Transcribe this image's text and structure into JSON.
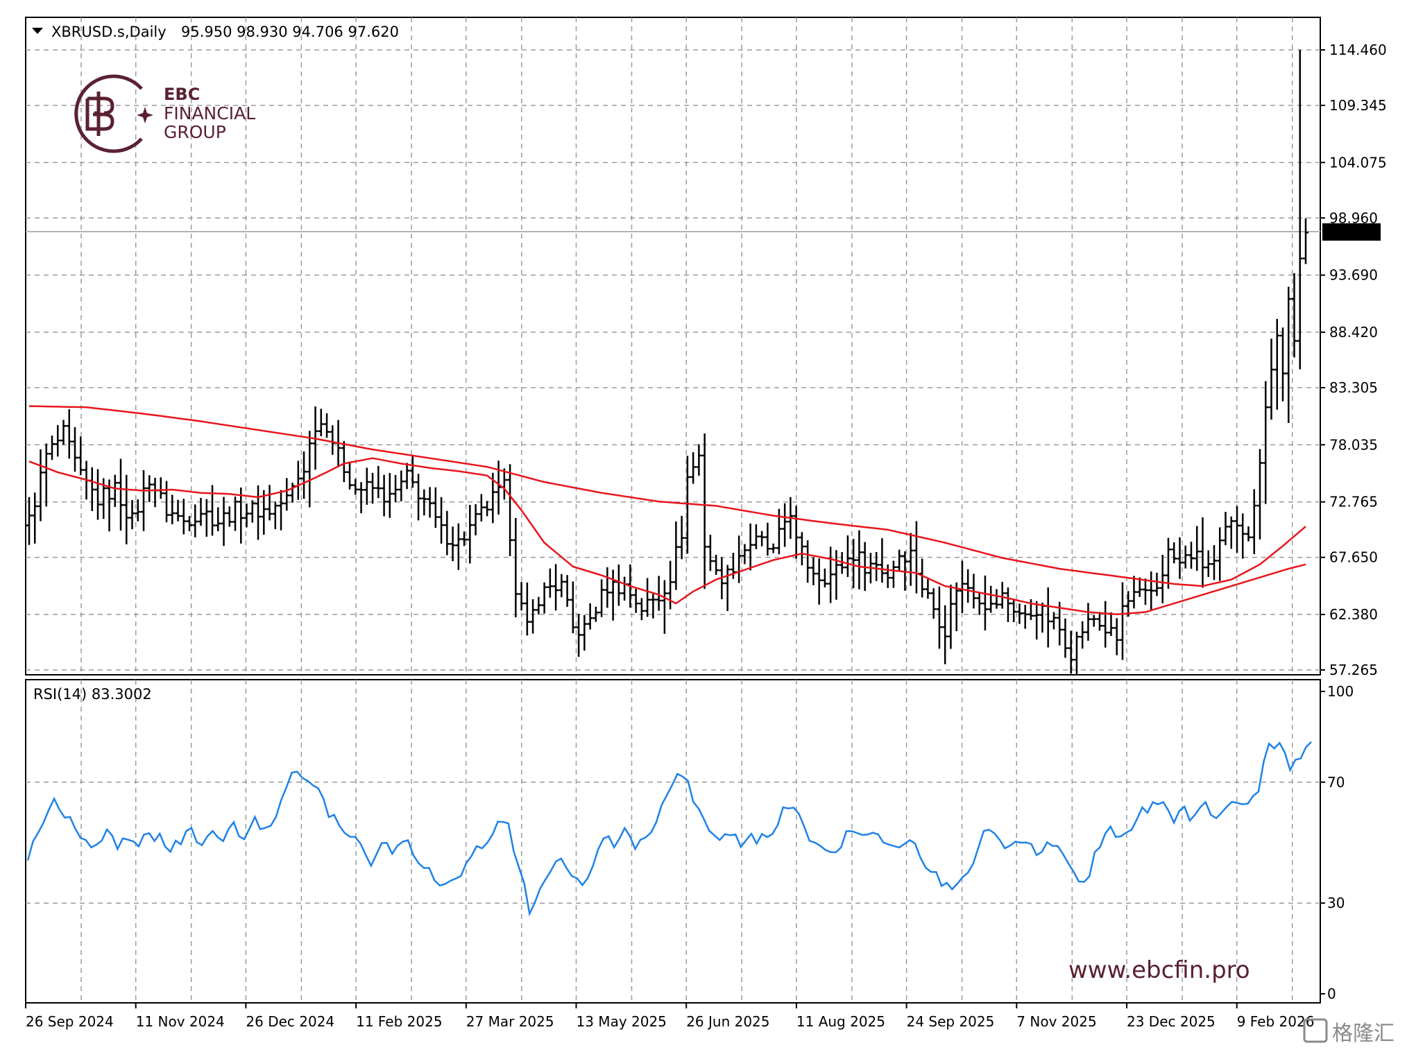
{
  "header": {
    "symbol": "XBRUSD.s,Daily",
    "ohlc": "95.950 98.930 94.706 97.620"
  },
  "logo": {
    "line1": "EBC",
    "line2": "FINANCIAL",
    "line3": "GROUP",
    "brand_color": "#5a2130"
  },
  "website": "www.ebcfin.pro",
  "watermark": "格隆汇",
  "colors": {
    "bars": "#000000",
    "ma_long": "#e8141c",
    "ma_short": "#e8141c",
    "rsi": "#1e82e6",
    "grid": "#9a9a9a",
    "price_tag_bg": "#000000",
    "price_tag_text": "#ffffff"
  },
  "chart_data": [
    {
      "type": "ohlc",
      "title": "XBRUSD.s,Daily",
      "ylim": [
        57.265,
        114.46
      ],
      "y_ticks": [
        "114.460",
        "109.345",
        "104.075",
        "98.960",
        "93.690",
        "88.420",
        "83.305",
        "78.035",
        "72.765",
        "67.650",
        "62.380",
        "57.265"
      ],
      "x_ticks": [
        "26 Sep 2024",
        "11 Nov 2024",
        "26 Dec 2024",
        "11 Feb 2025",
        "27 Mar 2025",
        "13 May 2025",
        "26 Jun 2025",
        "11 Aug 2025",
        "24 Sep 2025",
        "7 Nov 2025",
        "23 Dec 2025",
        "9 Feb 2026"
      ],
      "current_price": "97.620",
      "close_anchors": [
        [
          0,
          71
        ],
        [
          3,
          77
        ],
        [
          6,
          79
        ],
        [
          9,
          75
        ],
        [
          12,
          73
        ],
        [
          15,
          74
        ],
        [
          18,
          71
        ],
        [
          21,
          75
        ],
        [
          24,
          72
        ],
        [
          27,
          71
        ],
        [
          30,
          72
        ],
        [
          33,
          71
        ],
        [
          36,
          72
        ],
        [
          39,
          72
        ],
        [
          42,
          72
        ],
        [
          45,
          73
        ],
        [
          48,
          76
        ],
        [
          50,
          80
        ],
        [
          52,
          80
        ],
        [
          54,
          77
        ],
        [
          57,
          74
        ],
        [
          60,
          74
        ],
        [
          63,
          73
        ],
        [
          66,
          75
        ],
        [
          69,
          73
        ],
        [
          72,
          70
        ],
        [
          75,
          69
        ],
        [
          78,
          71
        ],
        [
          81,
          73
        ],
        [
          83,
          74
        ],
        [
          84,
          70
        ],
        [
          85,
          65
        ],
        [
          87,
          61
        ],
        [
          89,
          64
        ],
        [
          91,
          65
        ],
        [
          93,
          65
        ],
        [
          95,
          61
        ],
        [
          97,
          61
        ],
        [
          99,
          63
        ],
        [
          101,
          65
        ],
        [
          104,
          65
        ],
        [
          107,
          63
        ],
        [
          110,
          64
        ],
        [
          112,
          66
        ],
        [
          114,
          70
        ],
        [
          115,
          75
        ],
        [
          117,
          77
        ],
        [
          118,
          69
        ],
        [
          120,
          66
        ],
        [
          122,
          66
        ],
        [
          124,
          68
        ],
        [
          126,
          69
        ],
        [
          128,
          69
        ],
        [
          130,
          68
        ],
        [
          132,
          71
        ],
        [
          133,
          72
        ],
        [
          134,
          69
        ],
        [
          136,
          67
        ],
        [
          138,
          66
        ],
        [
          140,
          66
        ],
        [
          142,
          67
        ],
        [
          144,
          68
        ],
        [
          146,
          67
        ],
        [
          148,
          67
        ],
        [
          150,
          66
        ],
        [
          152,
          68
        ],
        [
          154,
          68
        ],
        [
          156,
          65
        ],
        [
          158,
          63
        ],
        [
          160,
          61
        ],
        [
          162,
          65
        ],
        [
          164,
          65
        ],
        [
          166,
          64
        ],
        [
          168,
          63
        ],
        [
          170,
          64
        ],
        [
          172,
          63
        ],
        [
          174,
          62
        ],
        [
          176,
          63
        ],
        [
          178,
          62
        ],
        [
          180,
          61
        ],
        [
          182,
          59
        ],
        [
          184,
          61
        ],
        [
          186,
          62
        ],
        [
          188,
          61
        ],
        [
          190,
          60
        ],
        [
          191,
          63
        ],
        [
          193,
          64
        ],
        [
          195,
          64
        ],
        [
          197,
          65
        ],
        [
          199,
          68
        ],
        [
          201,
          67
        ],
        [
          203,
          68
        ],
        [
          205,
          67
        ],
        [
          207,
          67
        ],
        [
          209,
          70
        ],
        [
          211,
          71
        ],
        [
          213,
          70
        ],
        [
          214,
          72
        ],
        [
          215,
          77
        ],
        [
          216,
          82
        ],
        [
          217,
          85
        ],
        [
          218,
          88
        ],
        [
          219,
          85
        ],
        [
          220,
          91
        ],
        [
          221,
          87
        ],
        [
          222,
          95
        ],
        [
          223,
          97.62
        ]
      ],
      "ma_long_anchors": [
        [
          0,
          81.6
        ],
        [
          10,
          81.5
        ],
        [
          20,
          80.9
        ],
        [
          30,
          80.2
        ],
        [
          40,
          79.4
        ],
        [
          50,
          78.6
        ],
        [
          60,
          77.6
        ],
        [
          70,
          76.8
        ],
        [
          80,
          76.0
        ],
        [
          90,
          74.6
        ],
        [
          100,
          73.6
        ],
        [
          110,
          72.8
        ],
        [
          120,
          72.4
        ],
        [
          130,
          71.5
        ],
        [
          140,
          70.8
        ],
        [
          150,
          70.2
        ],
        [
          160,
          69.0
        ],
        [
          170,
          67.6
        ],
        [
          180,
          66.6
        ],
        [
          190,
          65.9
        ],
        [
          200,
          65.2
        ],
        [
          205,
          65.0
        ],
        [
          210,
          65.6
        ],
        [
          215,
          67.0
        ],
        [
          219,
          68.7
        ],
        [
          223,
          70.5
        ]
      ],
      "ma_short_anchors": [
        [
          0,
          76.5
        ],
        [
          5,
          75.5
        ],
        [
          10,
          74.8
        ],
        [
          15,
          74.0
        ],
        [
          20,
          73.8
        ],
        [
          25,
          73.9
        ],
        [
          30,
          73.6
        ],
        [
          35,
          73.5
        ],
        [
          40,
          73.2
        ],
        [
          45,
          73.8
        ],
        [
          50,
          75.0
        ],
        [
          55,
          76.3
        ],
        [
          60,
          76.8
        ],
        [
          65,
          76.3
        ],
        [
          70,
          75.9
        ],
        [
          75,
          75.6
        ],
        [
          80,
          75.2
        ],
        [
          83,
          74.0
        ],
        [
          86,
          72.0
        ],
        [
          90,
          69.0
        ],
        [
          95,
          66.8
        ],
        [
          100,
          66.0
        ],
        [
          105,
          65.0
        ],
        [
          110,
          64.2
        ],
        [
          113,
          63.4
        ],
        [
          116,
          64.5
        ],
        [
          120,
          65.6
        ],
        [
          125,
          66.5
        ],
        [
          130,
          67.4
        ],
        [
          135,
          68.0
        ],
        [
          140,
          67.5
        ],
        [
          145,
          66.8
        ],
        [
          150,
          66.5
        ],
        [
          155,
          66.2
        ],
        [
          160,
          65.0
        ],
        [
          165,
          64.5
        ],
        [
          170,
          64.0
        ],
        [
          175,
          63.4
        ],
        [
          180,
          63.0
        ],
        [
          185,
          62.6
        ],
        [
          190,
          62.4
        ],
        [
          195,
          62.6
        ],
        [
          200,
          63.4
        ],
        [
          205,
          64.2
        ],
        [
          210,
          65.0
        ],
        [
          215,
          65.8
        ],
        [
          220,
          66.6
        ],
        [
          223,
          67.0
        ]
      ]
    },
    {
      "type": "line",
      "title": "RSI(14) 83.3002",
      "ylim": [
        0,
        100
      ],
      "y_ticks": [
        "100",
        "70",
        "30",
        "0"
      ],
      "value_anchors": [
        [
          0,
          46
        ],
        [
          2,
          53
        ],
        [
          5,
          64
        ],
        [
          7,
          58
        ],
        [
          9,
          55
        ],
        [
          11,
          50
        ],
        [
          13,
          49
        ],
        [
          15,
          53
        ],
        [
          17,
          48
        ],
        [
          19,
          51
        ],
        [
          21,
          50
        ],
        [
          23,
          54
        ],
        [
          25,
          51
        ],
        [
          27,
          47
        ],
        [
          29,
          51
        ],
        [
          31,
          53
        ],
        [
          33,
          49
        ],
        [
          35,
          52
        ],
        [
          37,
          51
        ],
        [
          39,
          55
        ],
        [
          41,
          53
        ],
        [
          43,
          57
        ],
        [
          45,
          55
        ],
        [
          47,
          58
        ],
        [
          49,
          70
        ],
        [
          51,
          73
        ],
        [
          53,
          70
        ],
        [
          55,
          66
        ],
        [
          57,
          60
        ],
        [
          59,
          55
        ],
        [
          61,
          51
        ],
        [
          63,
          49
        ],
        [
          65,
          44
        ],
        [
          67,
          50
        ],
        [
          69,
          48
        ],
        [
          71,
          51
        ],
        [
          73,
          47
        ],
        [
          75,
          42
        ],
        [
          77,
          38
        ],
        [
          79,
          36
        ],
        [
          81,
          39
        ],
        [
          83,
          42
        ],
        [
          85,
          47
        ],
        [
          87,
          51
        ],
        [
          89,
          57
        ],
        [
          91,
          55
        ],
        [
          93,
          42
        ],
        [
          95,
          28
        ],
        [
          97,
          35
        ],
        [
          99,
          40
        ],
        [
          101,
          45
        ],
        [
          103,
          40
        ],
        [
          105,
          37
        ],
        [
          107,
          43
        ],
        [
          109,
          52
        ],
        [
          111,
          50
        ],
        [
          113,
          53
        ],
        [
          115,
          49
        ],
        [
          117,
          51
        ],
        [
          119,
          57
        ],
        [
          121,
          64
        ],
        [
          123,
          72
        ],
        [
          125,
          70
        ],
        [
          127,
          60
        ],
        [
          129,
          53
        ],
        [
          131,
          50
        ],
        [
          133,
          52
        ],
        [
          135,
          50
        ],
        [
          137,
          52
        ],
        [
          139,
          51
        ],
        [
          141,
          52
        ],
        [
          143,
          60
        ],
        [
          145,
          63
        ],
        [
          147,
          55
        ],
        [
          149,
          49
        ],
        [
          151,
          47
        ],
        [
          153,
          48
        ],
        [
          155,
          52
        ],
        [
          157,
          55
        ],
        [
          159,
          53
        ],
        [
          161,
          52
        ],
        [
          163,
          51
        ],
        [
          165,
          49
        ],
        [
          167,
          51
        ],
        [
          169,
          46
        ],
        [
          171,
          41
        ],
        [
          173,
          37
        ],
        [
          175,
          35
        ],
        [
          177,
          39
        ],
        [
          179,
          43
        ],
        [
          181,
          54
        ],
        [
          183,
          52
        ],
        [
          185,
          50
        ],
        [
          187,
          52
        ],
        [
          189,
          49
        ],
        [
          191,
          47
        ],
        [
          193,
          50
        ],
        [
          195,
          47
        ],
        [
          197,
          45
        ],
        [
          199,
          38
        ],
        [
          201,
          40
        ],
        [
          203,
          50
        ],
        [
          205,
          55
        ],
        [
          207,
          52
        ],
        [
          209,
          54
        ],
        [
          211,
          60
        ],
        [
          213,
          63
        ],
        [
          215,
          62
        ],
        [
          217,
          58
        ],
        [
          219,
          60
        ],
        [
          221,
          58
        ],
        [
          223,
          62
        ],
        [
          225,
          57
        ],
        [
          227,
          60
        ],
        [
          229,
          64
        ],
        [
          231,
          62
        ],
        [
          233,
          68
        ],
        [
          235,
          82
        ],
        [
          237,
          83
        ],
        [
          239,
          76
        ],
        [
          241,
          77
        ],
        [
          243,
          83.3
        ]
      ]
    }
  ]
}
